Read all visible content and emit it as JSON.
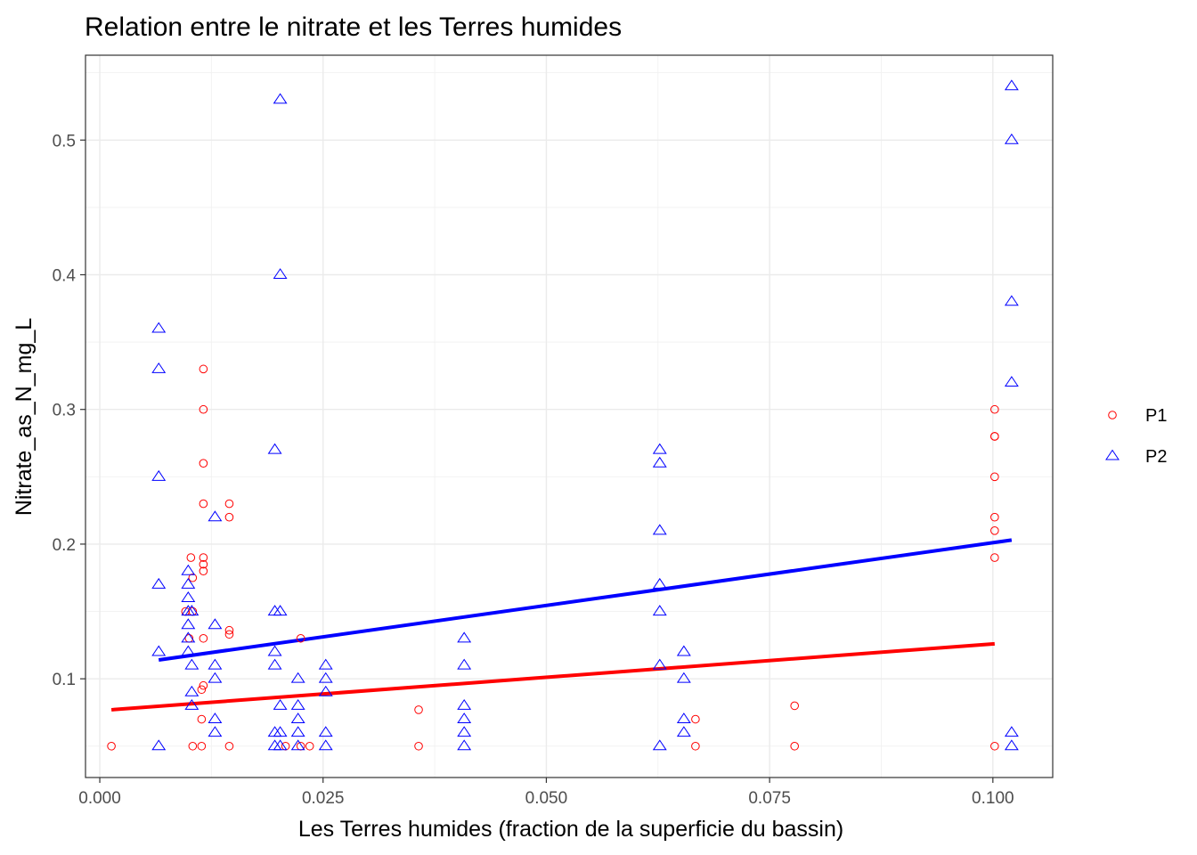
{
  "chart_data": {
    "type": "scatter",
    "title": "Relation entre le nitrate et les Terres humides",
    "xlabel": "Les Terres humides (fraction de la superficie du bassin)",
    "ylabel": "Nitrate_as_N_mg_L",
    "xlim": [
      -0.0016,
      0.1067
    ],
    "ylim": [
      0.0267,
      0.563
    ],
    "x_ticks": [
      0.0,
      0.025,
      0.05,
      0.075,
      0.1
    ],
    "x_tick_labels": [
      "0.000",
      "0.025",
      "0.050",
      "0.075",
      "0.100"
    ],
    "y_ticks": [
      0.1,
      0.2,
      0.3,
      0.4,
      0.5
    ],
    "y_tick_labels": [
      "0.1",
      "0.2",
      "0.3",
      "0.4",
      "0.5"
    ],
    "grid": true,
    "legend_position": "right",
    "series": [
      {
        "name": "P1",
        "marker": "circle",
        "color": "#ff0000",
        "points": [
          [
            0.0013,
            0.05
          ],
          [
            0.0096,
            0.15
          ],
          [
            0.01,
            0.13
          ],
          [
            0.0104,
            0.05
          ],
          [
            0.0102,
            0.19
          ],
          [
            0.0104,
            0.175
          ],
          [
            0.0104,
            0.15
          ],
          [
            0.0114,
            0.05
          ],
          [
            0.0116,
            0.33
          ],
          [
            0.0116,
            0.3
          ],
          [
            0.0116,
            0.26
          ],
          [
            0.0116,
            0.23
          ],
          [
            0.0116,
            0.19
          ],
          [
            0.0116,
            0.185
          ],
          [
            0.0116,
            0.18
          ],
          [
            0.0116,
            0.13
          ],
          [
            0.0116,
            0.095
          ],
          [
            0.0114,
            0.092
          ],
          [
            0.0114,
            0.07
          ],
          [
            0.0145,
            0.23
          ],
          [
            0.0145,
            0.22
          ],
          [
            0.0145,
            0.136
          ],
          [
            0.0145,
            0.133
          ],
          [
            0.0145,
            0.05
          ],
          [
            0.0208,
            0.05
          ],
          [
            0.0225,
            0.13
          ],
          [
            0.0225,
            0.05
          ],
          [
            0.0235,
            0.05
          ],
          [
            0.0357,
            0.077
          ],
          [
            0.0357,
            0.05
          ],
          [
            0.0667,
            0.07
          ],
          [
            0.0667,
            0.05
          ],
          [
            0.0778,
            0.08
          ],
          [
            0.0778,
            0.05
          ],
          [
            0.1002,
            0.3
          ],
          [
            0.1002,
            0.28
          ],
          [
            0.1002,
            0.28
          ],
          [
            0.1002,
            0.25
          ],
          [
            0.1002,
            0.22
          ],
          [
            0.1002,
            0.21
          ],
          [
            0.1002,
            0.19
          ],
          [
            0.1002,
            0.05
          ]
        ],
        "trend": [
          [
            0.0013,
            0.077
          ],
          [
            0.1002,
            0.126
          ]
        ]
      },
      {
        "name": "P2",
        "marker": "triangle",
        "color": "#0000ff",
        "points": [
          [
            0.0066,
            0.36
          ],
          [
            0.0066,
            0.33
          ],
          [
            0.0066,
            0.25
          ],
          [
            0.0066,
            0.17
          ],
          [
            0.0066,
            0.12
          ],
          [
            0.0066,
            0.05
          ],
          [
            0.0099,
            0.18
          ],
          [
            0.0099,
            0.17
          ],
          [
            0.0099,
            0.16
          ],
          [
            0.0099,
            0.15
          ],
          [
            0.0099,
            0.14
          ],
          [
            0.0099,
            0.13
          ],
          [
            0.0099,
            0.12
          ],
          [
            0.0103,
            0.15
          ],
          [
            0.0103,
            0.11
          ],
          [
            0.0103,
            0.09
          ],
          [
            0.0103,
            0.08
          ],
          [
            0.0129,
            0.22
          ],
          [
            0.0129,
            0.14
          ],
          [
            0.0129,
            0.11
          ],
          [
            0.0129,
            0.1
          ],
          [
            0.0129,
            0.07
          ],
          [
            0.0129,
            0.06
          ],
          [
            0.0196,
            0.27
          ],
          [
            0.0196,
            0.15
          ],
          [
            0.0196,
            0.12
          ],
          [
            0.0196,
            0.11
          ],
          [
            0.0196,
            0.06
          ],
          [
            0.0196,
            0.05
          ],
          [
            0.0202,
            0.53
          ],
          [
            0.0202,
            0.4
          ],
          [
            0.0202,
            0.15
          ],
          [
            0.0202,
            0.08
          ],
          [
            0.0202,
            0.06
          ],
          [
            0.0202,
            0.05
          ],
          [
            0.0222,
            0.1
          ],
          [
            0.0222,
            0.08
          ],
          [
            0.0222,
            0.07
          ],
          [
            0.0222,
            0.06
          ],
          [
            0.0222,
            0.05
          ],
          [
            0.0253,
            0.11
          ],
          [
            0.0253,
            0.1
          ],
          [
            0.0253,
            0.09
          ],
          [
            0.0253,
            0.06
          ],
          [
            0.0253,
            0.05
          ],
          [
            0.0408,
            0.13
          ],
          [
            0.0408,
            0.11
          ],
          [
            0.0408,
            0.08
          ],
          [
            0.0408,
            0.07
          ],
          [
            0.0408,
            0.06
          ],
          [
            0.0408,
            0.05
          ],
          [
            0.0627,
            0.27
          ],
          [
            0.0627,
            0.26
          ],
          [
            0.0627,
            0.21
          ],
          [
            0.0627,
            0.17
          ],
          [
            0.0627,
            0.15
          ],
          [
            0.0627,
            0.11
          ],
          [
            0.0627,
            0.05
          ],
          [
            0.0654,
            0.12
          ],
          [
            0.0654,
            0.1
          ],
          [
            0.0654,
            0.07
          ],
          [
            0.0654,
            0.06
          ],
          [
            0.1021,
            0.54
          ],
          [
            0.1021,
            0.5
          ],
          [
            0.1021,
            0.38
          ],
          [
            0.1021,
            0.32
          ],
          [
            0.1021,
            0.06
          ],
          [
            0.1021,
            0.05
          ]
        ],
        "trend": [
          [
            0.0066,
            0.114
          ],
          [
            0.1021,
            0.203
          ]
        ]
      }
    ]
  }
}
